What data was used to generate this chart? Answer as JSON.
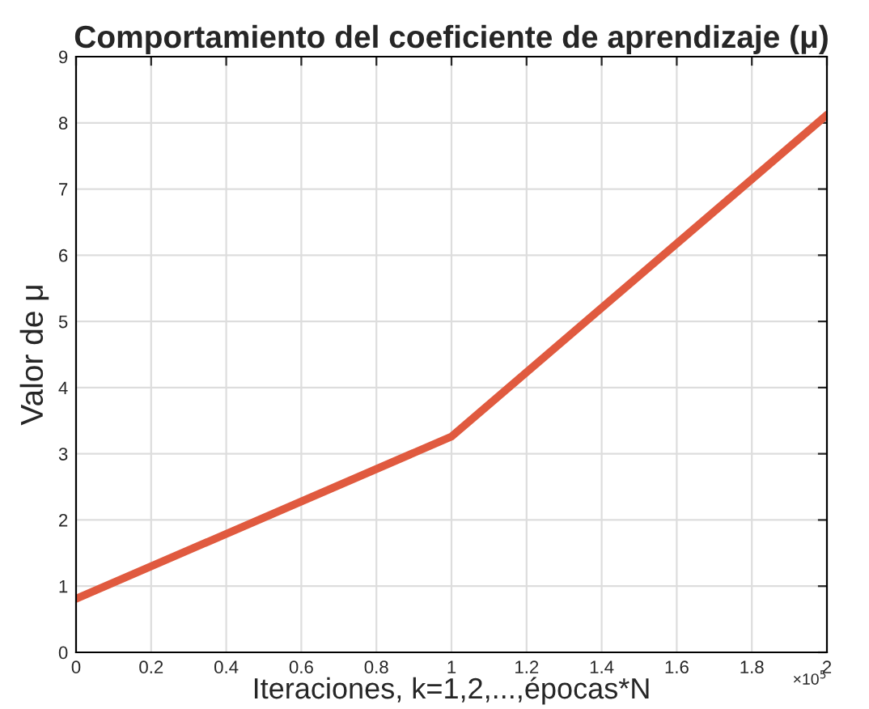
{
  "chart_data": {
    "type": "line",
    "title": "Comportamiento del coeficiente de aprendizaje (μ)",
    "xlabel": "Iteraciones, k=1,2,...,épocas*N",
    "ylabel": "Valor de μ",
    "x": [
      0,
      1,
      2
    ],
    "series": [
      {
        "color": "#e05a3f",
        "values": [
          0.81,
          3.26,
          8.12
        ]
      }
    ],
    "xlim": [
      0,
      2
    ],
    "xticks": [
      0,
      0.2,
      0.4,
      0.6,
      0.8,
      1,
      1.2,
      1.4,
      1.6,
      1.8,
      2
    ],
    "ylim": [
      0,
      9
    ],
    "yticks": [
      0,
      1,
      2,
      3,
      4,
      5,
      6,
      7,
      8,
      9
    ],
    "annotations": [
      "×10$^{5}$"
    ],
    "grid": true,
    "line_style": "solid",
    "marker": "none"
  }
}
